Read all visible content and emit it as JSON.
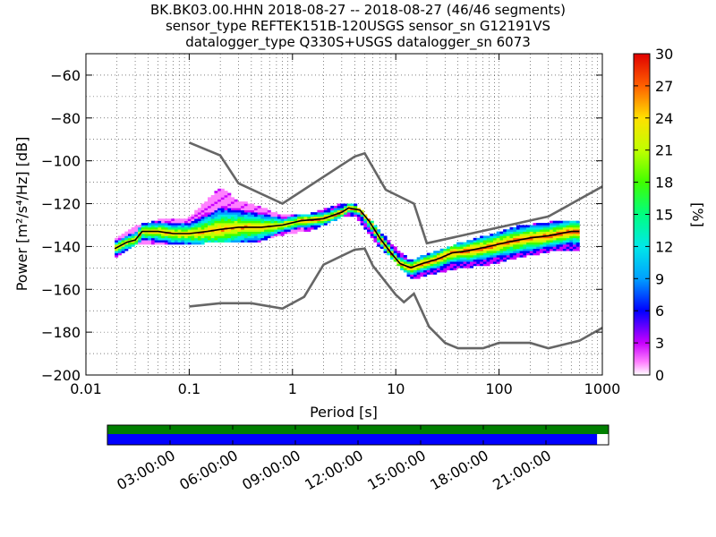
{
  "title_lines": [
    "BK.BK03.00.HHN   2018-08-27 -- 2018-08-27  (46/46 segments)",
    "sensor_type REFTEK151B-120USGS sensor_sn G12191VS",
    "datalogger_type Q330S+USGS datalogger_sn 6073"
  ],
  "chart_data": {
    "type": "heatmap",
    "title": "BK.BK03.00.HHN   2018-08-27 -- 2018-08-27  (46/46 segments)",
    "xlabel": "Period [s]",
    "ylabel": "Power [m²/s⁴/Hz] [dB]",
    "x_scale": "log",
    "xlim": [
      0.01,
      1000
    ],
    "ylim": [
      -200,
      -50
    ],
    "x_ticks": [
      0.01,
      0.1,
      1,
      10,
      100,
      1000
    ],
    "x_tick_labels": [
      "0.01",
      "0.1",
      "1",
      "10",
      "100",
      "1000"
    ],
    "y_ticks": [
      -200,
      -180,
      -160,
      -140,
      -120,
      -100,
      -80,
      -60
    ],
    "y_tick_labels": [
      "−200",
      "−180",
      "−160",
      "−140",
      "−120",
      "−100",
      "−80",
      "−60"
    ],
    "grid": "dotted",
    "colorbar": {
      "label": "[%]",
      "range": [
        0,
        30
      ],
      "ticks": [
        0,
        3,
        6,
        9,
        12,
        15,
        18,
        21,
        24,
        27,
        30
      ]
    },
    "series": [
      {
        "name": "",
        "style": "gray",
        "x": [
          0.1,
          0.2,
          0.3,
          0.8,
          4,
          5,
          8,
          15,
          20,
          300,
          1000
        ],
        "y": [
          -91.5,
          -97.5,
          -110.5,
          -120,
          -98,
          -96.5,
          -113.5,
          -120,
          -138.5,
          -126,
          -112
        ]
      },
      {
        "name": "",
        "style": "gray",
        "x": [
          0.1,
          0.2,
          0.4,
          0.8,
          1.3,
          2,
          4,
          5,
          6,
          10,
          12,
          15,
          21,
          30,
          40,
          70,
          100,
          200,
          300,
          600,
          1000
        ],
        "y": [
          -168,
          -166.5,
          -166.5,
          -169,
          -163.5,
          -148.5,
          -141.5,
          -141,
          -149,
          -162.5,
          -166,
          -162,
          -177.5,
          -185,
          -187.5,
          -187.5,
          -185,
          -185,
          -187.5,
          -184,
          -178
        ]
      },
      {
        "name": "",
        "style": "black",
        "x": [
          0.019,
          0.025,
          0.03,
          0.035,
          0.05,
          0.07,
          0.1,
          0.15,
          0.2,
          0.3,
          0.5,
          0.8,
          1.2,
          2,
          3,
          3.5,
          4.5,
          5.5,
          7,
          9,
          11,
          14,
          18,
          25,
          35,
          50,
          80,
          120,
          200,
          300,
          500,
          600
        ],
        "y": [
          -141,
          -138,
          -137,
          -133,
          -133,
          -134,
          -134,
          -133,
          -132,
          -131,
          -131,
          -130,
          -128,
          -127,
          -124,
          -122,
          -123,
          -128,
          -136,
          -143,
          -148,
          -150,
          -148,
          -146,
          -143,
          -142,
          -140,
          -138,
          -136,
          -135,
          -133,
          -133
        ]
      }
    ],
    "heatmap_band": {
      "x": [
        0.019,
        0.03,
        0.05,
        0.1,
        0.2,
        0.3,
        0.5,
        0.8,
        1.5,
        3,
        4,
        5,
        7,
        10,
        14,
        20,
        40,
        80,
        150,
        300,
        600
      ],
      "y_low": [
        -145,
        -139,
        -139,
        -139,
        -137,
        -138,
        -137,
        -134,
        -132,
        -126,
        -125,
        -131,
        -140,
        -147,
        -155,
        -153,
        -150,
        -148,
        -145,
        -142,
        -141
      ],
      "y_high": [
        -137,
        -131,
        -128,
        -127,
        -113,
        -119,
        -122,
        -126,
        -125,
        -120,
        -120,
        -125,
        -133,
        -141,
        -147,
        -144,
        -139,
        -135,
        -131,
        -129,
        -128
      ]
    }
  },
  "availability": {
    "time_ticks": [
      "03:00:00",
      "06:00:00",
      "09:00:00",
      "12:00:00",
      "15:00:00",
      "18:00:00",
      "21:00:00"
    ],
    "coverage_fraction": 0.977,
    "colors": {
      "data": "#007f00",
      "psd": "#0000ff"
    }
  },
  "colors": {
    "gray_curve": "#666666",
    "median": "#000000"
  }
}
